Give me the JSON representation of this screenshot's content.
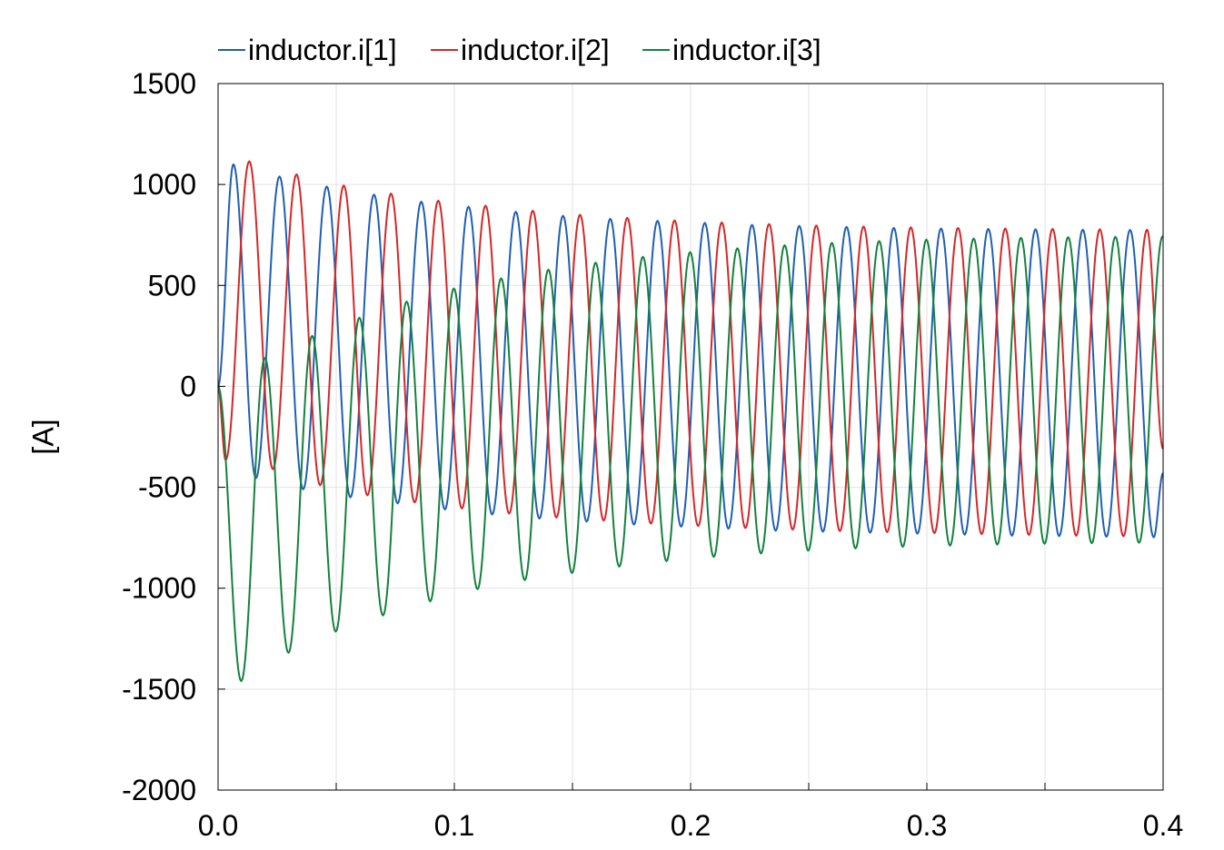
{
  "chart_data": {
    "type": "line",
    "title": "",
    "xlabel": "",
    "ylabel": "[A]",
    "xlim": [
      0.0,
      0.4
    ],
    "ylim": [
      -2000,
      1500
    ],
    "x_ticks": [
      "0.0",
      "0.1",
      "0.2",
      "0.3",
      "0.4"
    ],
    "x_tick_values": [
      0.0,
      0.1,
      0.2,
      0.3,
      0.4
    ],
    "y_ticks": [
      "1500",
      "1000",
      "500",
      "0",
      "-500",
      "-1000",
      "-1500",
      "-2000"
    ],
    "y_tick_values": [
      1500,
      1000,
      500,
      0,
      -500,
      -1000,
      -1500,
      -2000
    ],
    "grid": true,
    "legend_position": "top",
    "series": [
      {
        "name": "inductor.i[1]",
        "color": "#1f5fb5",
        "extrema": [
          [
            0.0,
            0
          ],
          [
            0.0065,
            1100
          ],
          [
            0.016,
            -455
          ],
          [
            0.026,
            1040
          ],
          [
            0.036,
            -510
          ],
          [
            0.046,
            990
          ],
          [
            0.056,
            -550
          ],
          [
            0.066,
            950
          ],
          [
            0.076,
            -580
          ],
          [
            0.086,
            915
          ],
          [
            0.096,
            -610
          ],
          [
            0.106,
            890
          ],
          [
            0.116,
            -635
          ],
          [
            0.126,
            865
          ],
          [
            0.136,
            -655
          ],
          [
            0.146,
            845
          ],
          [
            0.156,
            -670
          ],
          [
            0.166,
            830
          ],
          [
            0.176,
            -685
          ],
          [
            0.186,
            820
          ],
          [
            0.196,
            -695
          ],
          [
            0.206,
            810
          ],
          [
            0.216,
            -705
          ],
          [
            0.226,
            800
          ],
          [
            0.236,
            -715
          ],
          [
            0.246,
            795
          ],
          [
            0.256,
            -720
          ],
          [
            0.266,
            790
          ],
          [
            0.276,
            -725
          ],
          [
            0.286,
            785
          ],
          [
            0.296,
            -730
          ],
          [
            0.306,
            782
          ],
          [
            0.316,
            -735
          ],
          [
            0.326,
            780
          ],
          [
            0.336,
            -740
          ],
          [
            0.346,
            778
          ],
          [
            0.356,
            -742
          ],
          [
            0.366,
            776
          ],
          [
            0.376,
            -745
          ],
          [
            0.386,
            775
          ],
          [
            0.396,
            -748
          ],
          [
            0.4,
            -430
          ]
        ]
      },
      {
        "name": "inductor.i[2]",
        "color": "#d62728",
        "extrema": [
          [
            0.0,
            0
          ],
          [
            0.0032,
            -365
          ],
          [
            0.0132,
            1115
          ],
          [
            0.0232,
            -410
          ],
          [
            0.0332,
            1050
          ],
          [
            0.0432,
            -490
          ],
          [
            0.0532,
            995
          ],
          [
            0.0632,
            -540
          ],
          [
            0.0732,
            955
          ],
          [
            0.0832,
            -575
          ],
          [
            0.0932,
            920
          ],
          [
            0.1032,
            -605
          ],
          [
            0.1132,
            895
          ],
          [
            0.1232,
            -630
          ],
          [
            0.1332,
            870
          ],
          [
            0.1432,
            -650
          ],
          [
            0.1532,
            850
          ],
          [
            0.1632,
            -665
          ],
          [
            0.1732,
            835
          ],
          [
            0.1832,
            -680
          ],
          [
            0.1932,
            822
          ],
          [
            0.2032,
            -692
          ],
          [
            0.2132,
            812
          ],
          [
            0.2232,
            -702
          ],
          [
            0.2332,
            804
          ],
          [
            0.2432,
            -710
          ],
          [
            0.2532,
            797
          ],
          [
            0.2632,
            -717
          ],
          [
            0.2732,
            792
          ],
          [
            0.2832,
            -722
          ],
          [
            0.2932,
            788
          ],
          [
            0.3032,
            -727
          ],
          [
            0.3132,
            785
          ],
          [
            0.3232,
            -732
          ],
          [
            0.3332,
            782
          ],
          [
            0.3432,
            -736
          ],
          [
            0.3532,
            780
          ],
          [
            0.3632,
            -740
          ],
          [
            0.3732,
            778
          ],
          [
            0.3832,
            -743
          ],
          [
            0.3932,
            776
          ],
          [
            0.4,
            -310
          ]
        ]
      },
      {
        "name": "inductor.i[3]",
        "color": "#13823d",
        "extrema": [
          [
            0.0,
            0
          ],
          [
            0.0098,
            -1460
          ],
          [
            0.0198,
            140
          ],
          [
            0.0298,
            -1320
          ],
          [
            0.0398,
            250
          ],
          [
            0.0498,
            -1215
          ],
          [
            0.0598,
            340
          ],
          [
            0.0698,
            -1135
          ],
          [
            0.0798,
            420
          ],
          [
            0.0898,
            -1065
          ],
          [
            0.0998,
            485
          ],
          [
            0.1098,
            -1005
          ],
          [
            0.1198,
            535
          ],
          [
            0.1298,
            -960
          ],
          [
            0.1398,
            578
          ],
          [
            0.1498,
            -925
          ],
          [
            0.1598,
            613
          ],
          [
            0.1698,
            -893
          ],
          [
            0.1798,
            642
          ],
          [
            0.1898,
            -866
          ],
          [
            0.1998,
            665
          ],
          [
            0.2098,
            -845
          ],
          [
            0.2198,
            684
          ],
          [
            0.2298,
            -828
          ],
          [
            0.2398,
            699
          ],
          [
            0.2498,
            -814
          ],
          [
            0.2598,
            711
          ],
          [
            0.2698,
            -803
          ],
          [
            0.2798,
            720
          ],
          [
            0.2898,
            -795
          ],
          [
            0.2998,
            727
          ],
          [
            0.3098,
            -789
          ],
          [
            0.3198,
            732
          ],
          [
            0.3298,
            -784
          ],
          [
            0.3398,
            736
          ],
          [
            0.3498,
            -780
          ],
          [
            0.3598,
            739
          ],
          [
            0.3698,
            -777
          ],
          [
            0.3798,
            741
          ],
          [
            0.3898,
            -775
          ],
          [
            0.3998,
            743
          ],
          [
            0.4,
            742
          ]
        ]
      }
    ]
  }
}
